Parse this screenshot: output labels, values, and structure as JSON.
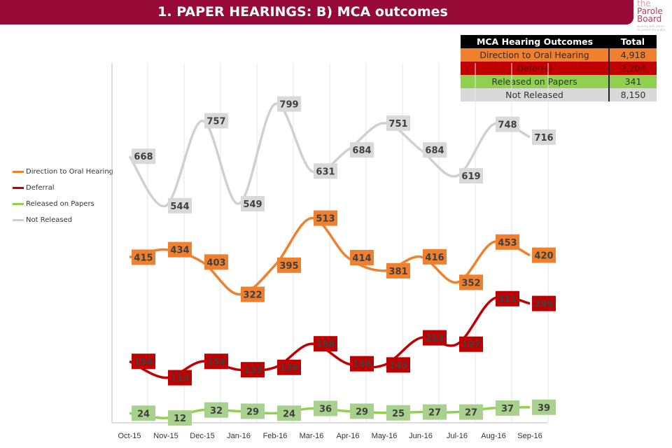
{
  "header": {
    "title": "1. PAPER HEARINGS: B) MCA outcomes",
    "logo": "the Parole Board"
  },
  "summary_table": {
    "headers": [
      "MCA Hearing Outcomes",
      "Total"
    ],
    "rows": [
      {
        "label": "Direction to Oral Hearing",
        "total": "4,918",
        "bg": "#f07f2e",
        "fg": "#3a2a1a"
      },
      {
        "label": "Deferral",
        "total": "2,204",
        "bg": "#c00000",
        "fg": "#5a0000"
      },
      {
        "label": "Released on Papers",
        "total": "341",
        "bg": "#8fd14f",
        "fg": "#2a3a1a"
      },
      {
        "label": "Not Released",
        "total": "8,150",
        "bg": "#d9d9d9",
        "fg": "#333333"
      }
    ]
  },
  "chart_data": {
    "type": "line",
    "categories": [
      "Oct-15",
      "Nov-15",
      "Dec-15",
      "Jan-16",
      "Feb-16",
      "Mar-16",
      "Apr-16",
      "May-16",
      "Jun-16",
      "Jul-16",
      "Aug-16",
      "Sep-16"
    ],
    "ylim": [
      0,
      800
    ],
    "grid": "vertical",
    "legend_placement": "left",
    "series": [
      {
        "name": "Direction to Oral Hearing",
        "color": "#f07f2e",
        "label_bg": "#f07f2e",
        "values": [
          415,
          434,
          403,
          322,
          395,
          513,
          414,
          381,
          416,
          352,
          453,
          420
        ]
      },
      {
        "name": "Deferral",
        "color": "#c00000",
        "label_bg": "#c00000",
        "values": [
          154,
          113,
          154,
          133,
          139,
          198,
          148,
          145,
          213,
          197,
          311,
          299
        ]
      },
      {
        "name": "Released on Papers",
        "color": "#92d050",
        "label_bg": "#a9d18e",
        "values": [
          24,
          12,
          32,
          29,
          24,
          36,
          29,
          25,
          27,
          27,
          37,
          39
        ]
      },
      {
        "name": "Not Released",
        "color": "#d0d0d0",
        "label_bg": "#d9d9d9",
        "values": [
          668,
          544,
          757,
          549,
          799,
          631,
          684,
          751,
          684,
          619,
          748,
          716
        ]
      }
    ]
  }
}
